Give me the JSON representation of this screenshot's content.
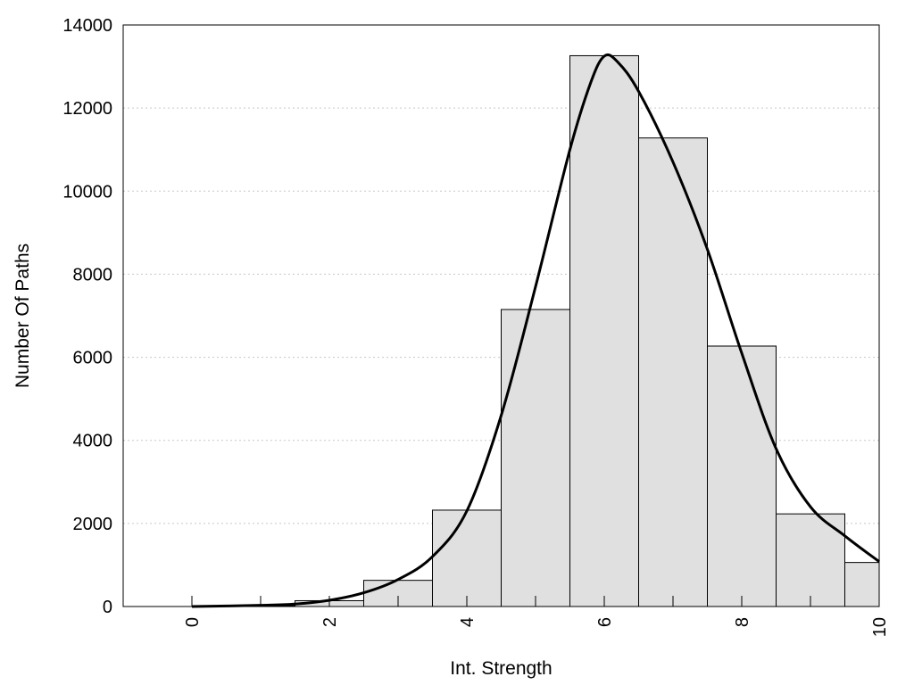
{
  "chart_data": {
    "type": "bar",
    "title": "",
    "xlabel": "Int. Strength",
    "ylabel": "Number Of Paths",
    "xlim": [
      -1,
      10
    ],
    "ylim": [
      0,
      14000
    ],
    "x_ticks": [
      "0",
      "2",
      "4",
      "6",
      "8",
      "10"
    ],
    "y_ticks": [
      "0",
      "2000",
      "4000",
      "6000",
      "8000",
      "10000",
      "12000",
      "14000"
    ],
    "grid": "horizontal dotted",
    "bins": [
      {
        "x_start": 0,
        "x_end": 0.5,
        "value": 10
      },
      {
        "x_start": 0.5,
        "x_end": 1.5,
        "value": 20
      },
      {
        "x_start": 1.5,
        "x_end": 2.5,
        "value": 140
      },
      {
        "x_start": 2.5,
        "x_end": 3.5,
        "value": 630
      },
      {
        "x_start": 3.5,
        "x_end": 4.5,
        "value": 2320
      },
      {
        "x_start": 4.5,
        "x_end": 5.5,
        "value": 7150
      },
      {
        "x_start": 5.5,
        "x_end": 6.5,
        "value": 13260
      },
      {
        "x_start": 6.5,
        "x_end": 7.5,
        "value": 11280
      },
      {
        "x_start": 7.5,
        "x_end": 8.5,
        "value": 6270
      },
      {
        "x_start": 8.5,
        "x_end": 9.5,
        "value": 2230
      },
      {
        "x_start": 9.5,
        "x_end": 10,
        "value": 1060
      }
    ],
    "curve": {
      "x": [
        0,
        1,
        1.5,
        2,
        2.5,
        3,
        3.5,
        4,
        4.5,
        5,
        5.5,
        5.8,
        6,
        6.2,
        6.5,
        7,
        7.5,
        8,
        8.5,
        9,
        9.5,
        10
      ],
      "y": [
        0,
        30,
        60,
        150,
        330,
        650,
        1200,
        2300,
        4600,
        7700,
        11000,
        12600,
        13250,
        13100,
        12400,
        10700,
        8600,
        6100,
        3800,
        2400,
        1700,
        1080
      ]
    },
    "colors": {
      "bar_fill": "#e0e0e0",
      "bar_stroke": "#000000",
      "curve": "#000000",
      "grid": "#c8c8c8"
    }
  }
}
